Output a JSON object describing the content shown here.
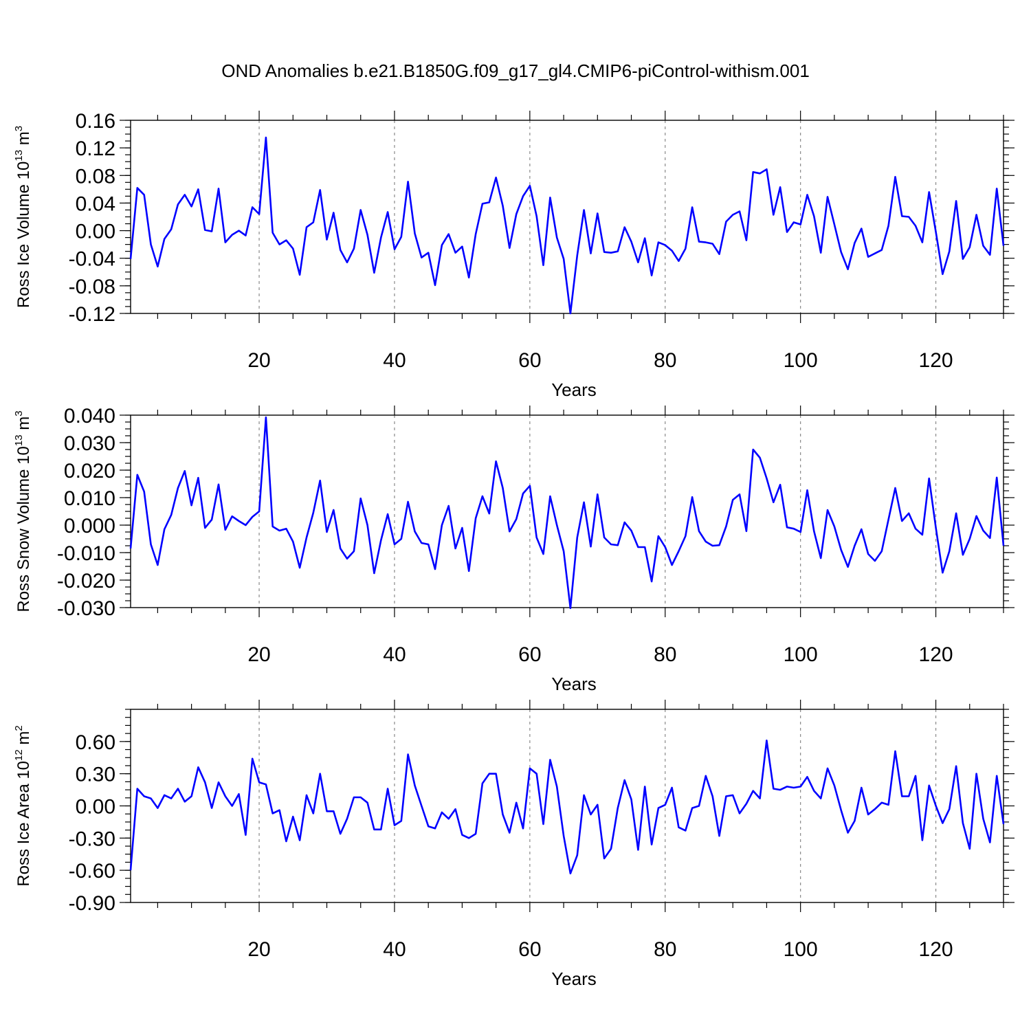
{
  "title": "OND Anomalies b.e21.B1850G.f09_g17_gl4.CMIP6-piControl-withism.001",
  "colors": {
    "line": "#0000ff",
    "grid": "#888888",
    "axis": "#000000"
  },
  "chart_data": [
    {
      "type": "line",
      "ylabel_text": "Ross Ice Volume 10",
      "ylabel_exp": "13",
      "ylabel_unit": " m",
      "ylabel_unit_exp": "3",
      "xlabel": "Years",
      "xlim": [
        1,
        130
      ],
      "ylim": [
        -0.12,
        0.16
      ],
      "yticks": [
        "-0.12",
        "-0.08",
        "-0.04",
        "0.00",
        "0.04",
        "0.08",
        "0.12",
        "0.16"
      ],
      "xticks": [
        "20",
        "40",
        "60",
        "80",
        "100",
        "120"
      ],
      "grid_x": true,
      "series": [
        {
          "name": "Ross Ice Volume",
          "values": [
            -0.041,
            0.062,
            0.052,
            -0.02,
            -0.052,
            -0.012,
            0.002,
            0.038,
            0.052,
            0.035,
            0.06,
            0.001,
            -0.001,
            0.061,
            -0.017,
            -0.006,
            0.0,
            -0.007,
            0.034,
            0.024,
            0.135,
            -0.003,
            -0.02,
            -0.014,
            -0.026,
            -0.064,
            0.005,
            0.012,
            0.059,
            -0.013,
            0.026,
            -0.028,
            -0.046,
            -0.026,
            0.03,
            -0.006,
            -0.061,
            -0.01,
            0.027,
            -0.027,
            -0.009,
            0.071,
            -0.004,
            -0.039,
            -0.032,
            -0.079,
            -0.021,
            -0.005,
            -0.032,
            -0.023,
            -0.068,
            -0.005,
            0.039,
            0.041,
            0.077,
            0.036,
            -0.025,
            0.024,
            0.05,
            0.065,
            0.021,
            -0.05,
            0.048,
            -0.01,
            -0.041,
            -0.12,
            -0.036,
            0.03,
            -0.033,
            0.025,
            -0.031,
            -0.032,
            -0.03,
            0.005,
            -0.016,
            -0.046,
            -0.011,
            -0.065,
            -0.017,
            -0.021,
            -0.029,
            -0.044,
            -0.026,
            0.034,
            -0.016,
            -0.017,
            -0.019,
            -0.034,
            0.013,
            0.023,
            0.028,
            -0.014,
            0.085,
            0.083,
            0.089,
            0.023,
            0.063,
            -0.002,
            0.012,
            0.009,
            0.052,
            0.021,
            -0.032,
            0.049,
            0.009,
            -0.031,
            -0.056,
            -0.018,
            0.003,
            -0.038,
            -0.033,
            -0.028,
            0.007,
            0.078,
            0.021,
            0.02,
            0.007,
            -0.017,
            0.056,
            -0.002,
            -0.063,
            -0.03,
            0.043,
            -0.041,
            -0.024,
            0.023,
            -0.022,
            -0.035,
            0.061,
            -0.022
          ]
        }
      ]
    },
    {
      "type": "line",
      "ylabel_text": "Ross Snow Volume 10",
      "ylabel_exp": "13",
      "ylabel_unit": " m",
      "ylabel_unit_exp": "3",
      "xlabel": "Years",
      "xlim": [
        1,
        130
      ],
      "ylim": [
        -0.03,
        0.04
      ],
      "yticks": [
        "-0.030",
        "-0.020",
        "-0.010",
        "0.000",
        "0.010",
        "0.020",
        "0.030",
        "0.040"
      ],
      "xticks": [
        "20",
        "40",
        "60",
        "80",
        "100",
        "120"
      ],
      "grid_x": true,
      "series": [
        {
          "name": "Ross Snow Volume",
          "values": [
            -0.0085,
            0.0183,
            0.0122,
            -0.007,
            -0.0145,
            -0.0015,
            0.0037,
            0.0135,
            0.0197,
            0.0072,
            0.0172,
            -0.001,
            0.002,
            0.0148,
            -0.0017,
            0.0032,
            0.0015,
            0.0,
            0.003,
            0.005,
            0.0392,
            -0.0005,
            -0.002,
            -0.0013,
            -0.006,
            -0.0155,
            -0.0045,
            0.0045,
            0.0162,
            -0.0025,
            0.0055,
            -0.0085,
            -0.0122,
            -0.0095,
            0.0097,
            0.0,
            -0.0175,
            -0.0055,
            0.004,
            -0.007,
            -0.005,
            0.0085,
            -0.0023,
            -0.0065,
            -0.007,
            -0.016,
            0.0,
            0.007,
            -0.0085,
            -0.001,
            -0.0167,
            0.0025,
            0.0105,
            0.0042,
            0.0232,
            0.0135,
            -0.0023,
            0.0022,
            0.0115,
            0.0143,
            -0.0045,
            -0.0105,
            0.0105,
            0.0,
            -0.0095,
            -0.0302,
            -0.0045,
            0.0083,
            -0.0078,
            0.0112,
            -0.0045,
            -0.007,
            -0.0073,
            0.001,
            -0.002,
            -0.008,
            -0.008,
            -0.0205,
            -0.004,
            -0.008,
            -0.0145,
            -0.0095,
            -0.004,
            0.0102,
            -0.0022,
            -0.006,
            -0.0075,
            -0.0073,
            -0.0005,
            0.0092,
            0.0112,
            -0.0022,
            0.0275,
            0.0245,
            0.017,
            0.0083,
            0.0147,
            -0.0008,
            -0.0013,
            -0.0025,
            0.0127,
            -0.0022,
            -0.012,
            0.0055,
            -0.0005,
            -0.009,
            -0.0152,
            -0.0075,
            -0.0015,
            -0.0105,
            -0.013,
            -0.0095,
            0.002,
            0.0135,
            0.0015,
            0.0043,
            -0.0013,
            -0.0035,
            0.017,
            -0.001,
            -0.0173,
            -0.0095,
            0.0043,
            -0.0108,
            -0.005,
            0.0033,
            -0.002,
            -0.0047,
            0.0173,
            -0.0075
          ]
        }
      ]
    },
    {
      "type": "line",
      "ylabel_text": "Ross Ice Area 10",
      "ylabel_exp": "12",
      "ylabel_unit": " m",
      "ylabel_unit_exp": "2",
      "xlabel": "Years",
      "xlim": [
        1,
        130
      ],
      "ylim": [
        -0.9,
        0.9
      ],
      "yticks": [
        "-0.90",
        "-0.60",
        "-0.30",
        "0.00",
        "0.30",
        "0.60"
      ],
      "xticks": [
        "20",
        "40",
        "60",
        "80",
        "100",
        "120"
      ],
      "grid_x": true,
      "series": [
        {
          "name": "Ross Ice Area",
          "values": [
            -0.6,
            0.16,
            0.09,
            0.07,
            -0.02,
            0.1,
            0.07,
            0.16,
            0.04,
            0.09,
            0.36,
            0.22,
            -0.02,
            0.22,
            0.09,
            0.0,
            0.11,
            -0.27,
            0.44,
            0.22,
            0.2,
            -0.07,
            -0.04,
            -0.33,
            -0.1,
            -0.32,
            0.1,
            -0.07,
            0.3,
            -0.05,
            -0.05,
            -0.26,
            -0.12,
            0.08,
            0.08,
            0.03,
            -0.22,
            -0.22,
            0.16,
            -0.18,
            -0.14,
            0.48,
            0.19,
            0.0,
            -0.19,
            -0.21,
            -0.06,
            -0.12,
            -0.03,
            -0.27,
            -0.3,
            -0.26,
            0.21,
            0.3,
            0.3,
            -0.08,
            -0.25,
            0.03,
            -0.21,
            0.35,
            0.3,
            -0.17,
            0.43,
            0.18,
            -0.28,
            -0.63,
            -0.46,
            0.1,
            -0.08,
            0.01,
            -0.49,
            -0.4,
            -0.02,
            0.24,
            0.06,
            -0.41,
            0.18,
            -0.36,
            -0.02,
            0.01,
            0.17,
            -0.2,
            -0.23,
            -0.02,
            0.0,
            0.28,
            0.09,
            -0.28,
            0.09,
            0.1,
            -0.07,
            0.02,
            0.14,
            0.07,
            0.61,
            0.16,
            0.15,
            0.18,
            0.17,
            0.18,
            0.27,
            0.14,
            0.07,
            0.35,
            0.19,
            -0.04,
            -0.25,
            -0.14,
            0.17,
            -0.08,
            -0.03,
            0.03,
            0.01,
            0.51,
            0.09,
            0.09,
            0.28,
            -0.32,
            0.19,
            0.0,
            -0.16,
            -0.03,
            0.37,
            -0.16,
            -0.4,
            0.3,
            -0.12,
            -0.34,
            0.28,
            -0.17
          ]
        }
      ]
    }
  ]
}
